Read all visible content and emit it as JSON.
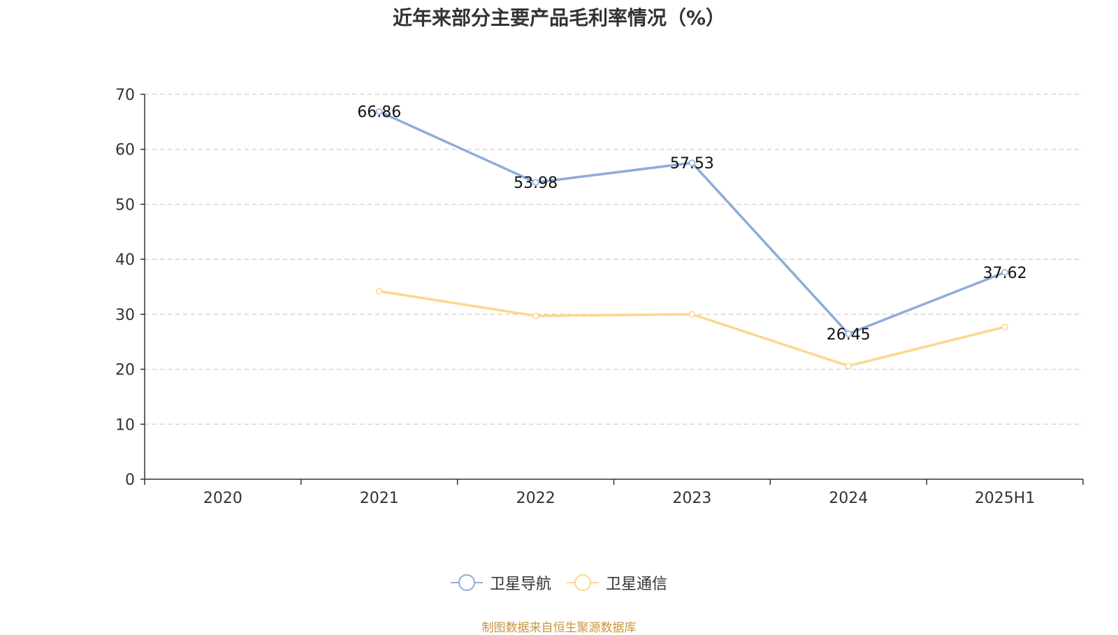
{
  "chart_data": {
    "type": "line",
    "title": "近年来部分主要产品毛利率情况（%）",
    "categories": [
      "2020",
      "2021",
      "2022",
      "2023",
      "2024",
      "2025H1"
    ],
    "ylim": [
      0,
      70
    ],
    "yticks": [
      0,
      10,
      20,
      30,
      40,
      50,
      60,
      70
    ],
    "grid": true,
    "legend_position": "bottom",
    "series": [
      {
        "name": "卫星导航",
        "color": "#8eacd8",
        "values": [
          null,
          66.86,
          53.98,
          57.53,
          26.45,
          37.62
        ],
        "labels": [
          "",
          "66.86",
          "53.98",
          "57.53",
          "26.45",
          "37.62"
        ]
      },
      {
        "name": "卫星通信",
        "color": "#fbd88e",
        "values": [
          null,
          34.2,
          29.7,
          30.0,
          20.6,
          27.7
        ],
        "labels": [
          "",
          "",
          "",
          "",
          "",
          ""
        ]
      }
    ]
  },
  "source_note": "制图数据来自恒生聚源数据库",
  "source_color": "#c8963c"
}
